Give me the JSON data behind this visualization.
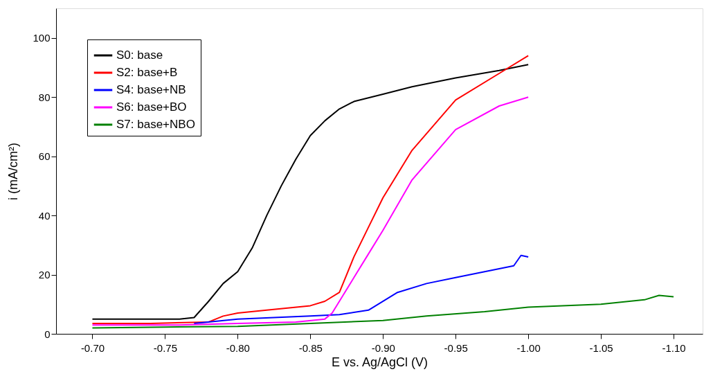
{
  "chart_data": {
    "type": "line",
    "xlabel": "E vs. Ag/AgCl (V)",
    "ylabel": "i (mA/cm²)",
    "xlim": [
      -0.675,
      -1.12
    ],
    "ylim": [
      0,
      110
    ],
    "xticks": [
      {
        "value": -0.7,
        "label": "-0.70"
      },
      {
        "value": -0.75,
        "label": "-0.75"
      },
      {
        "value": -0.8,
        "label": "-0.80"
      },
      {
        "value": -0.85,
        "label": "-0.85"
      },
      {
        "value": -0.9,
        "label": "-0.90"
      },
      {
        "value": -0.95,
        "label": "-0.95"
      },
      {
        "value": -1.0,
        "label": "-1.00"
      },
      {
        "value": -1.05,
        "label": "-1.05"
      },
      {
        "value": -1.1,
        "label": "-1.10"
      }
    ],
    "yticks": [
      0,
      20,
      40,
      60,
      80,
      100
    ],
    "grid": false,
    "legend": "top left",
    "marker": "none",
    "line_style": "solid",
    "series": [
      {
        "name": "S0: base",
        "color": "#000000",
        "x": [
          -0.7,
          -0.72,
          -0.74,
          -0.76,
          -0.77,
          -0.78,
          -0.79,
          -0.8,
          -0.81,
          -0.82,
          -0.83,
          -0.84,
          -0.85,
          -0.86,
          -0.87,
          -0.88,
          -0.9,
          -0.92,
          -0.95,
          -0.98,
          -0.99,
          -1.0
        ],
        "values": [
          5,
          5,
          5,
          5,
          5.5,
          11,
          17,
          21,
          29,
          40,
          50,
          59,
          67,
          72,
          76,
          78.5,
          81,
          83.5,
          86.5,
          89,
          90,
          91
        ]
      },
      {
        "name": "S2: base+B",
        "color": "#ff0000",
        "x": [
          -0.7,
          -0.74,
          -0.78,
          -0.79,
          -0.8,
          -0.82,
          -0.85,
          -0.86,
          -0.87,
          -0.875,
          -0.88,
          -0.89,
          -0.9,
          -0.92,
          -0.95,
          -0.98,
          -1.0
        ],
        "values": [
          3.5,
          3.5,
          4,
          6,
          7,
          8,
          9.5,
          11,
          14,
          20,
          26,
          36,
          46,
          62,
          79,
          88,
          94
        ]
      },
      {
        "name": "S4: base+NB",
        "color": "#0000ff",
        "x": [
          -0.77,
          -0.8,
          -0.85,
          -0.87,
          -0.89,
          -0.91,
          -0.93,
          -0.95,
          -0.97,
          -0.99,
          -0.995,
          -1.0
        ],
        "values": [
          3.5,
          5,
          6,
          6.5,
          8,
          14,
          17,
          19,
          21,
          23,
          26.5,
          26
        ]
      },
      {
        "name": "S6: base+BO",
        "color": "#ff00ff",
        "x": [
          -0.7,
          -0.76,
          -0.8,
          -0.84,
          -0.86,
          -0.865,
          -0.87,
          -0.88,
          -0.89,
          -0.9,
          -0.92,
          -0.95,
          -0.98,
          -1.0
        ],
        "values": [
          3,
          3,
          3.5,
          4,
          5,
          7,
          11,
          19,
          27,
          35,
          52,
          69,
          77,
          80
        ]
      },
      {
        "name": "S7: base+NBO",
        "color": "#008000",
        "x": [
          -0.7,
          -0.75,
          -0.8,
          -0.85,
          -0.9,
          -0.93,
          -0.97,
          -1.0,
          -1.05,
          -1.08,
          -1.09,
          -1.1
        ],
        "values": [
          2,
          2.3,
          2.5,
          3.5,
          4.5,
          6,
          7.5,
          9,
          10,
          11.5,
          13,
          12.5
        ]
      }
    ]
  }
}
